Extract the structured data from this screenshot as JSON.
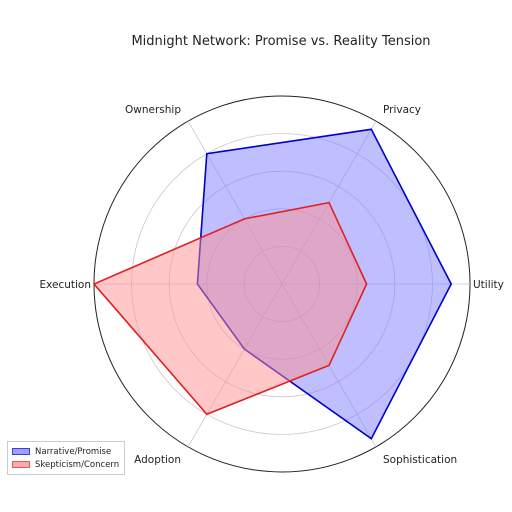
{
  "chart_data": {
    "type": "radar",
    "title": "Midnight Network: Promise vs. Reality Tension",
    "axes": [
      "Utility",
      "Privacy",
      "Ownership",
      "Execution",
      "Adoption",
      "Sophistication"
    ],
    "range": [
      0,
      10
    ],
    "grid": true,
    "legend_position": "bottom-left",
    "series": [
      {
        "name": "Narrative/Promise",
        "values": [
          9,
          9.5,
          8,
          4.5,
          4,
          9.5
        ],
        "color": "#0000cc",
        "fill": "#8080ff"
      },
      {
        "name": "Skepticism/Concern",
        "values": [
          4.5,
          5,
          4,
          10,
          8,
          5
        ],
        "color": "#e02020",
        "fill": "#ff9090"
      }
    ]
  }
}
